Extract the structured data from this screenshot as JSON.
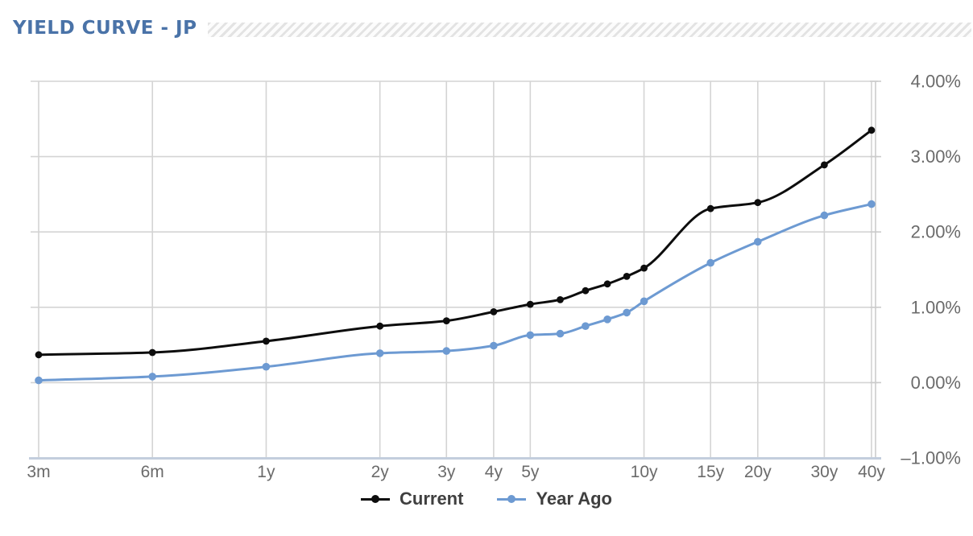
{
  "header": {
    "title": "YIELD CURVE - JP"
  },
  "colors": {
    "title": "#4a73a8",
    "grid": "#d4d4d4",
    "bottom_axis": "#c3cedd",
    "right_axis": "#cbcbcb",
    "tick_label": "#6b6b6b",
    "legend_text": "#3f3f3f",
    "hatch_stripe": "#e3e3e3",
    "background": "#ffffff"
  },
  "chart_data": {
    "type": "line",
    "title": "YIELD CURVE - JP",
    "x_axis": {
      "scale": "log-maturity",
      "tick_labels": [
        "3m",
        "6m",
        "1y",
        "2y",
        "3y",
        "4y",
        "5y",
        "10y",
        "15y",
        "20y",
        "30y",
        "40y"
      ],
      "tick_maturities_years": [
        0.25,
        0.5,
        1,
        2,
        3,
        4,
        5,
        10,
        15,
        20,
        30,
        40
      ]
    },
    "y_axis": {
      "unit": "%",
      "min": -1,
      "max": 4,
      "tick_labels": [
        "4.00%",
        "3.00%",
        "2.00%",
        "1.00%",
        "0.00%",
        "–1.00%"
      ],
      "tick_values": [
        4,
        3,
        2,
        1,
        0,
        -1
      ],
      "grid": true
    },
    "maturities_years": [
      0.25,
      0.5,
      1,
      2,
      3,
      4,
      5,
      6,
      7,
      8,
      9,
      10,
      15,
      20,
      30,
      40
    ],
    "series": [
      {
        "name": "Current",
        "color": "#0d0d0d",
        "marker": "circle",
        "values": [
          0.37,
          0.4,
          0.55,
          0.75,
          0.82,
          0.94,
          1.04,
          1.1,
          1.22,
          1.31,
          1.41,
          1.52,
          2.31,
          2.39,
          2.89,
          3.35
        ]
      },
      {
        "name": "Year Ago",
        "color": "#6d9ad2",
        "marker": "circle",
        "values": [
          0.03,
          0.08,
          0.21,
          0.39,
          0.42,
          0.49,
          0.63,
          0.65,
          0.75,
          0.84,
          0.93,
          1.08,
          1.59,
          1.87,
          2.22,
          2.37
        ]
      }
    ],
    "legend_position": "bottom",
    "legend_labels": [
      "Current",
      "Year Ago"
    ]
  }
}
